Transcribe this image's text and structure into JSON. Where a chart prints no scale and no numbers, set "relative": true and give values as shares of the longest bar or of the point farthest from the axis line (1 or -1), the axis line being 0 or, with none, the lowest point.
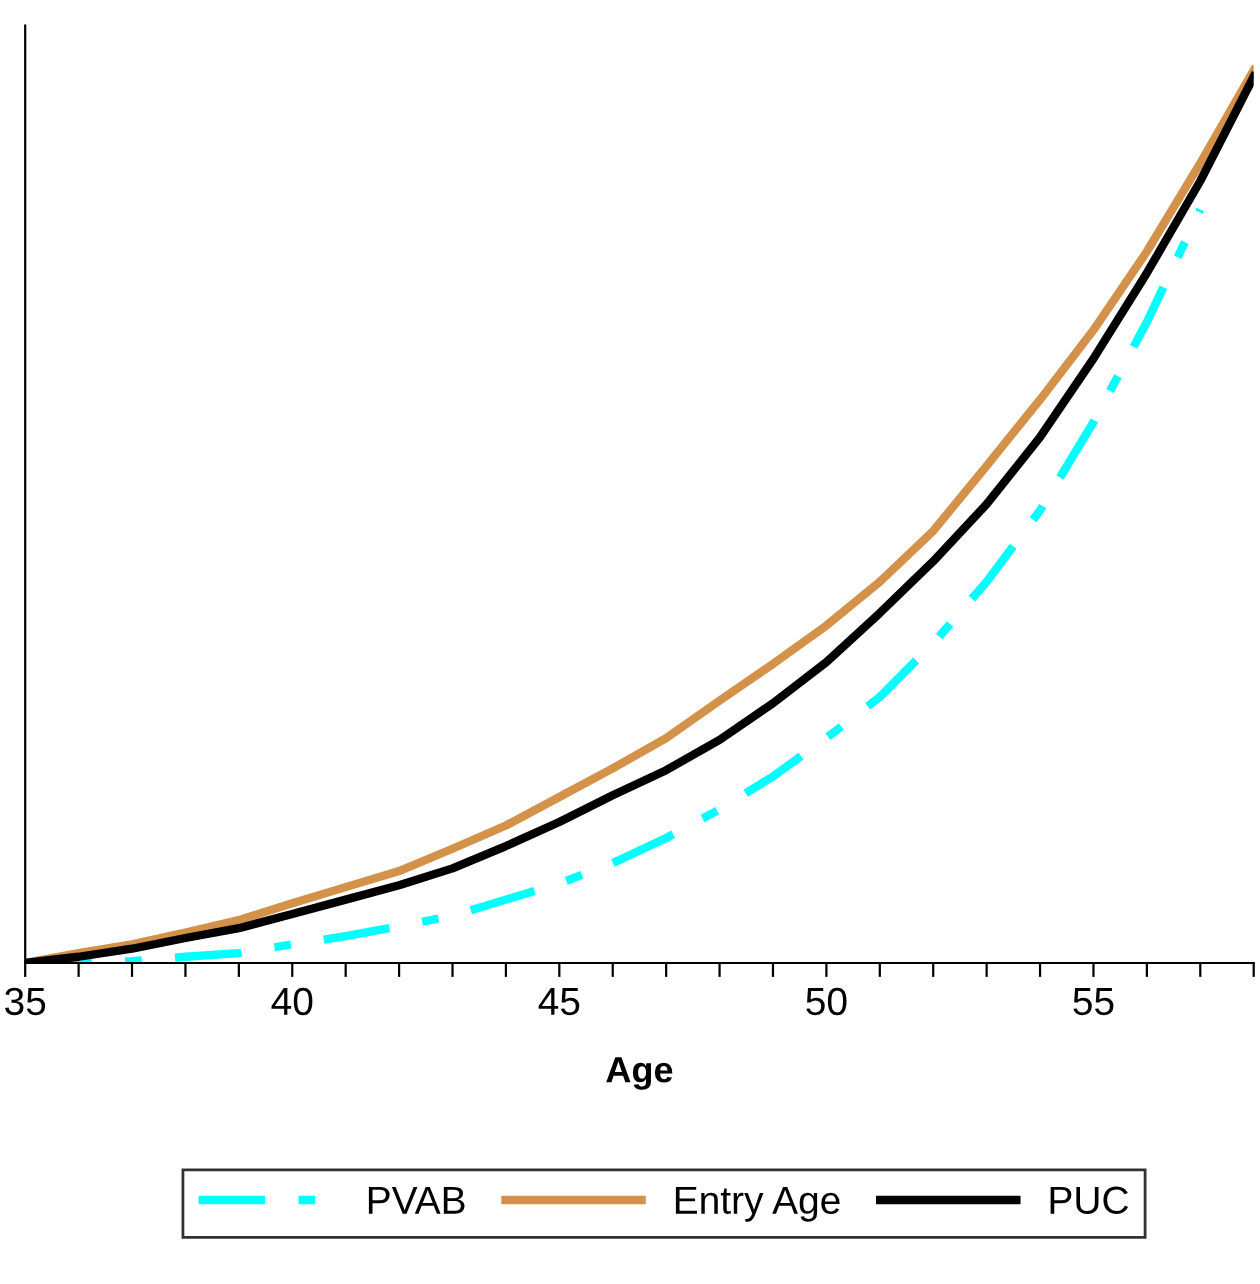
{
  "chart_data": {
    "type": "line",
    "relative": true,
    "xlabel": "Age",
    "x": [
      35,
      36,
      37,
      38,
      39,
      40,
      41,
      42,
      43,
      44,
      45,
      46,
      47,
      48,
      49,
      50,
      51,
      52,
      53,
      54,
      55,
      56,
      57,
      58
    ],
    "xlim": [
      35,
      58
    ],
    "xticks": [
      35,
      {
        "value": 36,
        "label": null
      },
      {
        "value": 37,
        "label": null
      },
      {
        "value": 38,
        "label": null
      },
      {
        "value": 39,
        "label": null
      },
      40,
      {
        "value": 41,
        "label": null
      },
      {
        "value": 42,
        "label": null
      },
      {
        "value": 43,
        "label": null
      },
      {
        "value": 44,
        "label": null
      },
      45,
      {
        "value": 46,
        "label": null
      },
      {
        "value": 47,
        "label": null
      },
      {
        "value": 48,
        "label": null
      },
      {
        "value": 49,
        "label": null
      },
      50,
      {
        "value": 51,
        "label": null
      },
      {
        "value": 52,
        "label": null
      },
      {
        "value": 53,
        "label": null
      },
      {
        "value": 54,
        "label": null
      },
      55,
      {
        "value": 56,
        "label": null
      },
      {
        "value": 57,
        "label": null
      },
      {
        "value": 58,
        "label": null
      }
    ],
    "series": [
      {
        "name": "PVAB",
        "color": "#00ffff",
        "line_style": "dashdot",
        "values": [
          0,
          0,
          0.002,
          0.007,
          0.011,
          0.021,
          0.03,
          0.041,
          0.053,
          0.071,
          0.089,
          0.112,
          0.14,
          0.172,
          0.209,
          0.252,
          0.298,
          0.358,
          0.427,
          0.507,
          0.606,
          0.718,
          0.844,
          null
        ]
      },
      {
        "name": "Entry Age",
        "color": "#d4914a",
        "type": "line",
        "values": [
          0,
          0.011,
          0.021,
          0.034,
          0.048,
          0.067,
          0.085,
          0.103,
          0.128,
          0.154,
          0.186,
          0.218,
          0.252,
          0.294,
          0.335,
          0.378,
          0.427,
          0.484,
          0.557,
          0.631,
          0.709,
          0.797,
          0.896,
          1.0
        ]
      },
      {
        "name": "PUC",
        "color": "#000000",
        "values": [
          0,
          0.007,
          0.016,
          0.028,
          0.039,
          0.055,
          0.071,
          0.087,
          0.106,
          0.131,
          0.158,
          0.188,
          0.216,
          0.25,
          0.291,
          0.337,
          0.392,
          0.45,
          0.514,
          0.589,
          0.677,
          0.773,
          0.876,
          0.993
        ]
      }
    ],
    "legend": "bottom",
    "grid": false,
    "line_style": "solid",
    "marker": "none"
  }
}
